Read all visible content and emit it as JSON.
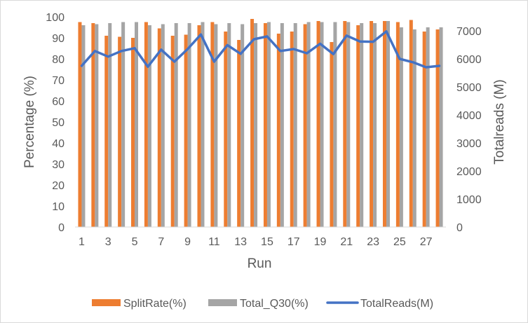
{
  "chart_data": {
    "type": "bar",
    "xlabel": "Run",
    "ylabel": "Percentage (%)",
    "y2label": "Totalreads (M)",
    "ylim": [
      0,
      100
    ],
    "y2lim": [
      0,
      7500
    ],
    "y_ticks": [
      0,
      10,
      20,
      30,
      40,
      50,
      60,
      70,
      80,
      90,
      100
    ],
    "y2_ticks": [
      0,
      1000,
      2000,
      3000,
      4000,
      5000,
      6000,
      7000
    ],
    "x_tick_labels": [
      "1",
      "3",
      "5",
      "7",
      "9",
      "11",
      "13",
      "15",
      "17",
      "19",
      "21",
      "23",
      "25",
      "27"
    ],
    "x": [
      1,
      2,
      3,
      4,
      5,
      6,
      7,
      8,
      9,
      10,
      11,
      12,
      13,
      14,
      15,
      16,
      17,
      18,
      19,
      20,
      21,
      22,
      23,
      24,
      25,
      26,
      27,
      28
    ],
    "series": [
      {
        "name": "SplitRate(%)",
        "kind": "bar",
        "axis": "left",
        "color": "#ED7D31",
        "values": [
          97.5,
          97.0,
          91.0,
          90.5,
          90.0,
          97.5,
          94.5,
          91.0,
          91.5,
          96.0,
          97.5,
          93.0,
          89.0,
          99.0,
          97.0,
          92.0,
          93.0,
          96.5,
          98.0,
          88.0,
          98.0,
          96.0,
          98.0,
          98.0,
          97.5,
          98.5,
          93.0,
          94.0
        ]
      },
      {
        "name": "Total_Q30(%)",
        "kind": "bar",
        "axis": "left",
        "color": "#A5A5A5",
        "values": [
          96.0,
          96.5,
          97.0,
          97.5,
          97.5,
          96.0,
          96.5,
          97.0,
          97.0,
          97.5,
          96.5,
          97.0,
          96.5,
          97.0,
          97.5,
          97.0,
          97.0,
          97.5,
          97.5,
          97.5,
          97.5,
          97.0,
          97.0,
          98.0,
          95.0,
          94.0,
          95.0,
          95.0
        ]
      },
      {
        "name": "TotalReads(M)",
        "kind": "line",
        "axis": "right",
        "color": "#4472C4",
        "values": [
          5750,
          6280,
          6080,
          6280,
          6380,
          5720,
          6330,
          5900,
          6350,
          6870,
          5900,
          6490,
          6180,
          6700,
          6800,
          6280,
          6350,
          6200,
          6540,
          6170,
          6830,
          6620,
          6610,
          6980,
          6000,
          5880,
          5700,
          5750
        ]
      }
    ],
    "legend_position": "bottom",
    "grid": false
  }
}
